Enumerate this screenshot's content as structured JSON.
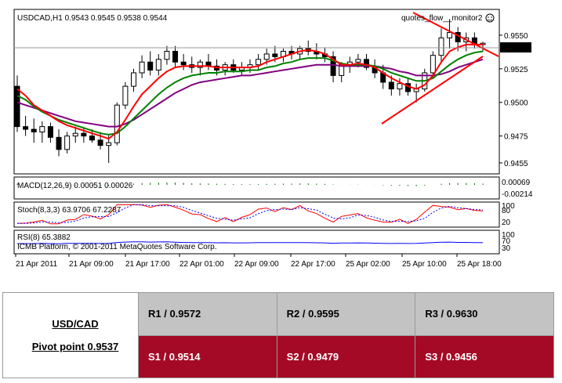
{
  "chart_data": {
    "type": "candlestick",
    "header": "USDCAD,H1  0.9543 0.9545 0.9538 0.9544",
    "monitor_label": "quotes_flow__monitor2",
    "copyright": "ICMB Platform, © 2001-2011 MetaQuotes Software Corp.",
    "current_price": "0.9544",
    "price_ticks": [
      "0.9550",
      "0.9525",
      "0.9500",
      "0.9475",
      "0.9455"
    ],
    "price_tick_values": [
      0.955,
      0.9525,
      0.95,
      0.9475,
      0.9455
    ],
    "ylim": [
      0.9448,
      0.9568
    ],
    "x_labels": [
      "21 Apr 2011",
      "21 Apr 09:00",
      "21 Apr 17:00",
      "22 Apr 01:00",
      "22 Apr 09:00",
      "22 Apr 17:00",
      "25 Apr 02:00",
      "25 Apr 10:00",
      "25 Apr 18:00"
    ],
    "ohlc": [
      [
        0.9512,
        0.952,
        0.9478,
        0.9482
      ],
      [
        0.9482,
        0.949,
        0.9475,
        0.948
      ],
      [
        0.948,
        0.9488,
        0.947,
        0.9478
      ],
      [
        0.9478,
        0.9486,
        0.947,
        0.9482
      ],
      [
        0.9482,
        0.9485,
        0.947,
        0.9474
      ],
      [
        0.9474,
        0.948,
        0.946,
        0.9465
      ],
      [
        0.9465,
        0.9478,
        0.9462,
        0.9475
      ],
      [
        0.9475,
        0.9482,
        0.947,
        0.9477
      ],
      [
        0.9477,
        0.9481,
        0.947,
        0.9475
      ],
      [
        0.9475,
        0.948,
        0.947,
        0.9472
      ],
      [
        0.9472,
        0.9478,
        0.9465,
        0.9468
      ],
      [
        0.9468,
        0.9476,
        0.9455,
        0.947
      ],
      [
        0.947,
        0.95,
        0.9468,
        0.9498
      ],
      [
        0.9498,
        0.9515,
        0.9495,
        0.9512
      ],
      [
        0.9512,
        0.9525,
        0.9508,
        0.9522
      ],
      [
        0.9522,
        0.9535,
        0.9518,
        0.953
      ],
      [
        0.953,
        0.9538,
        0.952,
        0.9524
      ],
      [
        0.9524,
        0.9536,
        0.952,
        0.9532
      ],
      [
        0.9532,
        0.9542,
        0.9528,
        0.9538
      ],
      [
        0.9538,
        0.9542,
        0.9526,
        0.953
      ],
      [
        0.953,
        0.9536,
        0.9524,
        0.9528
      ],
      [
        0.9528,
        0.9534,
        0.9522,
        0.9526
      ],
      [
        0.9526,
        0.9532,
        0.952,
        0.953
      ],
      [
        0.953,
        0.9536,
        0.9524,
        0.9527
      ],
      [
        0.9527,
        0.9532,
        0.952,
        0.9524
      ],
      [
        0.9524,
        0.953,
        0.952,
        0.9528
      ],
      [
        0.9528,
        0.9532,
        0.9522,
        0.9524
      ],
      [
        0.9524,
        0.953,
        0.952,
        0.9526
      ],
      [
        0.9526,
        0.9532,
        0.9522,
        0.9528
      ],
      [
        0.9528,
        0.9536,
        0.9524,
        0.9532
      ],
      [
        0.9532,
        0.954,
        0.9528,
        0.9536
      ],
      [
        0.9536,
        0.9542,
        0.953,
        0.9534
      ],
      [
        0.9534,
        0.954,
        0.953,
        0.9538
      ],
      [
        0.9538,
        0.9542,
        0.9532,
        0.9536
      ],
      [
        0.9536,
        0.9542,
        0.9532,
        0.954
      ],
      [
        0.954,
        0.9546,
        0.9535,
        0.9538
      ],
      [
        0.9538,
        0.9544,
        0.9532,
        0.9536
      ],
      [
        0.9536,
        0.9541,
        0.953,
        0.9534
      ],
      [
        0.9534,
        0.9538,
        0.9515,
        0.952
      ],
      [
        0.952,
        0.953,
        0.9515,
        0.9528
      ],
      [
        0.9528,
        0.9534,
        0.9522,
        0.953
      ],
      [
        0.953,
        0.9536,
        0.9526,
        0.9532
      ],
      [
        0.9532,
        0.9536,
        0.9524,
        0.9526
      ],
      [
        0.9526,
        0.9532,
        0.9518,
        0.9522
      ],
      [
        0.9522,
        0.9528,
        0.951,
        0.9515
      ],
      [
        0.9515,
        0.952,
        0.9505,
        0.951
      ],
      [
        0.951,
        0.9518,
        0.9505,
        0.9514
      ],
      [
        0.9514,
        0.9518,
        0.9505,
        0.9508
      ],
      [
        0.9508,
        0.9514,
        0.95,
        0.951
      ],
      [
        0.951,
        0.9525,
        0.9508,
        0.9522
      ],
      [
        0.9522,
        0.9538,
        0.9518,
        0.9535
      ],
      [
        0.9535,
        0.9555,
        0.953,
        0.9548
      ],
      [
        0.9548,
        0.9562,
        0.954,
        0.9552
      ],
      [
        0.9552,
        0.9556,
        0.9538,
        0.9545
      ],
      [
        0.9545,
        0.9552,
        0.9538,
        0.9548
      ],
      [
        0.9548,
        0.9552,
        0.954,
        0.9543
      ],
      [
        0.9543,
        0.9545,
        0.9538,
        0.9544
      ]
    ],
    "ma_red": [
      0.951,
      0.9505,
      0.9498,
      0.9494,
      0.949,
      0.9486,
      0.9483,
      0.9481,
      0.9479,
      0.9477,
      0.9475,
      0.9473,
      0.9478,
      0.9487,
      0.9497,
      0.9506,
      0.9512,
      0.9518,
      0.9523,
      0.9526,
      0.9527,
      0.9527,
      0.9527,
      0.9527,
      0.9526,
      0.9526,
      0.9526,
      0.9526,
      0.9526,
      0.9527,
      0.953,
      0.9532,
      0.9534,
      0.9536,
      0.9538,
      0.9539,
      0.9538,
      0.9536,
      0.9532,
      0.9528,
      0.9528,
      0.9529,
      0.9528,
      0.9526,
      0.9522,
      0.9518,
      0.9515,
      0.9512,
      0.951,
      0.9513,
      0.952,
      0.953,
      0.9538,
      0.9541,
      0.9543,
      0.9543,
      0.9543
    ],
    "ma_green": [
      0.9505,
      0.9502,
      0.9497,
      0.9493,
      0.949,
      0.9487,
      0.9485,
      0.9483,
      0.9481,
      0.9479,
      0.9477,
      0.9476,
      0.9477,
      0.9482,
      0.9488,
      0.9494,
      0.95,
      0.9506,
      0.9511,
      0.9515,
      0.9518,
      0.952,
      0.9521,
      0.9522,
      0.9522,
      0.9523,
      0.9523,
      0.9523,
      0.9524,
      0.9524,
      0.9526,
      0.9527,
      0.9529,
      0.953,
      0.9532,
      0.9533,
      0.9533,
      0.9533,
      0.9531,
      0.9529,
      0.9528,
      0.9528,
      0.9528,
      0.9527,
      0.9525,
      0.9522,
      0.952,
      0.9518,
      0.9516,
      0.9516,
      0.9518,
      0.9523,
      0.9528,
      0.9532,
      0.9535,
      0.9537,
      0.9538
    ],
    "ma_purple": [
      0.95,
      0.9498,
      0.9496,
      0.9494,
      0.9492,
      0.949,
      0.9488,
      0.9486,
      0.9485,
      0.9484,
      0.9483,
      0.9482,
      0.9482,
      0.9484,
      0.9487,
      0.9491,
      0.9495,
      0.9499,
      0.9503,
      0.9507,
      0.951,
      0.9513,
      0.9515,
      0.9516,
      0.9517,
      0.9518,
      0.9519,
      0.952,
      0.952,
      0.9521,
      0.9522,
      0.9523,
      0.9524,
      0.9525,
      0.9526,
      0.9527,
      0.9528,
      0.9528,
      0.9528,
      0.9527,
      0.9527,
      0.9527,
      0.9527,
      0.9527,
      0.9526,
      0.9525,
      0.9523,
      0.9522,
      0.952,
      0.952,
      0.952,
      0.9521,
      0.9523,
      0.9526,
      0.9528,
      0.953,
      0.9532
    ],
    "macd_label": "MACD(12,26,9) 0.00051 0.00026",
    "macd_ticks": [
      "0.00069",
      "-0.00214"
    ],
    "stoch_label": "Stoch(8,3,3) 63.9706 67.2287",
    "stoch_ticks": [
      "100",
      "80",
      "20"
    ],
    "rsi_label": "RSI(8) 65.3882",
    "rsi_ticks": [
      "100",
      "70",
      "30"
    ]
  },
  "pivot_table": {
    "pair": "USD/CAD",
    "pivot": "Pivot point 0.9537",
    "r1": "R1 / 0.9572",
    "r2": "R2 / 0.9595",
    "r3": "R3 / 0.9630",
    "s1": "S1 / 0.9514",
    "s2": "S2 / 0.9479",
    "s3": "S3 / 0.9456"
  },
  "colors": {
    "bull_body": "#ffffff",
    "bear_body": "#000000",
    "ma_red": "#ff0000",
    "ma_green": "#008000",
    "ma_purple": "#800080",
    "trendline": "#ff0000",
    "pivot_red": "#a40a26",
    "pivot_grey": "#c3c3c3"
  }
}
